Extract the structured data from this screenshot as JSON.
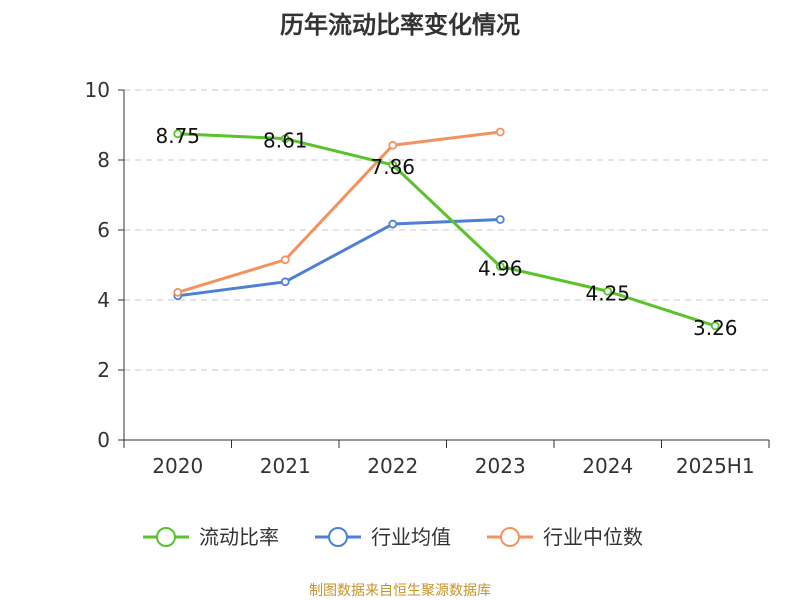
{
  "chart_data": {
    "type": "line",
    "title": "历年流动比率变化情况",
    "categories": [
      "2020",
      "2021",
      "2022",
      "2023",
      "2024",
      "2025H1"
    ],
    "ylim": [
      0,
      10
    ],
    "yticks": [
      0,
      2,
      4,
      6,
      8,
      10
    ],
    "grid": true,
    "legend_position": "bottom",
    "series": [
      {
        "name": "流动比率",
        "color": "#5ac22a",
        "values": [
          8.75,
          8.61,
          7.86,
          4.96,
          4.25,
          3.26
        ],
        "labels": [
          "8.75",
          "8.61",
          "7.86",
          "4.96",
          "4.25",
          "3.26"
        ]
      },
      {
        "name": "行业均值",
        "color": "#4e7fd6",
        "values": [
          4.12,
          4.52,
          6.17,
          6.3,
          null,
          null
        ]
      },
      {
        "name": "行业中位数",
        "color": "#f4925d",
        "values": [
          4.22,
          5.15,
          8.42,
          8.8,
          null,
          null
        ]
      }
    ],
    "source": "制图数据来自恒生聚源数据库"
  }
}
